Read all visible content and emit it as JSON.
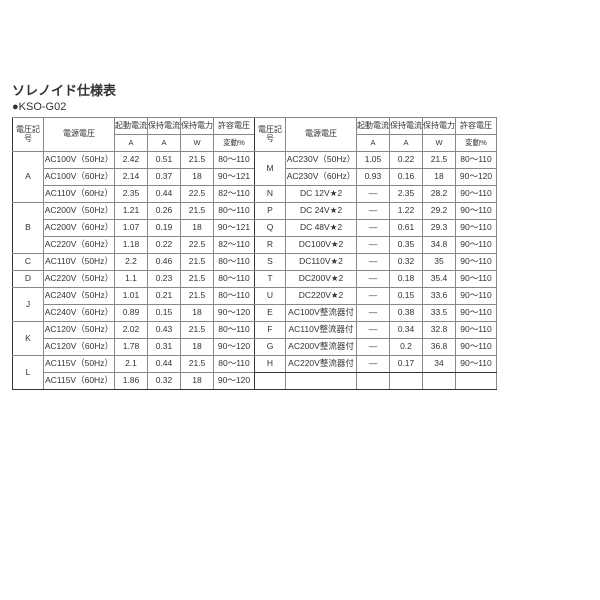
{
  "title": "ソレノイド仕様表",
  "subtitle": "●KSO-G02",
  "headers": {
    "code": "電圧記号",
    "voltage": "電源電圧",
    "start_current": "起動電流",
    "hold_current": "保持電流",
    "hold_power": "保持電力",
    "volt_variation": "許容電圧",
    "unit_A": "A",
    "unit_W": "W",
    "unit_pct": "変動%"
  },
  "left_groups": [
    {
      "code": "A",
      "rows": [
        {
          "v": "AC100V（50Hz）",
          "a": "2.42",
          "b": "0.51",
          "c": "21.5",
          "d": "80～110"
        },
        {
          "v": "AC100V（60Hz）",
          "a": "2.14",
          "b": "0.37",
          "c": "18",
          "d": "90～121"
        },
        {
          "v": "AC110V（60Hz）",
          "a": "2.35",
          "b": "0.44",
          "c": "22.5",
          "d": "82～110"
        }
      ]
    },
    {
      "code": "B",
      "rows": [
        {
          "v": "AC200V（50Hz）",
          "a": "1.21",
          "b": "0.26",
          "c": "21.5",
          "d": "80～110"
        },
        {
          "v": "AC200V（60Hz）",
          "a": "1.07",
          "b": "0.19",
          "c": "18",
          "d": "90～121"
        },
        {
          "v": "AC220V（60Hz）",
          "a": "1.18",
          "b": "0.22",
          "c": "22.5",
          "d": "82～110"
        }
      ]
    },
    {
      "code": "C",
      "rows": [
        {
          "v": "AC110V（50Hz）",
          "a": "2.2",
          "b": "0.46",
          "c": "21.5",
          "d": "80～110"
        }
      ]
    },
    {
      "code": "D",
      "rows": [
        {
          "v": "AC220V（50Hz）",
          "a": "1.1",
          "b": "0.23",
          "c": "21.5",
          "d": "80～110"
        }
      ]
    },
    {
      "code": "J",
      "rows": [
        {
          "v": "AC240V（50Hz）",
          "a": "1.01",
          "b": "0.21",
          "c": "21.5",
          "d": "80～110"
        },
        {
          "v": "AC240V（60Hz）",
          "a": "0.89",
          "b": "0.15",
          "c": "18",
          "d": "90～120"
        }
      ]
    },
    {
      "code": "K",
      "rows": [
        {
          "v": "AC120V（50Hz）",
          "a": "2.02",
          "b": "0.43",
          "c": "21.5",
          "d": "80～110"
        },
        {
          "v": "AC120V（60Hz）",
          "a": "1.78",
          "b": "0.31",
          "c": "18",
          "d": "90～120"
        }
      ]
    },
    {
      "code": "L",
      "rows": [
        {
          "v": "AC115V（50Hz）",
          "a": "2.1",
          "b": "0.44",
          "c": "21.5",
          "d": "80～110"
        },
        {
          "v": "AC115V（60Hz）",
          "a": "1.86",
          "b": "0.32",
          "c": "18",
          "d": "90～120"
        }
      ]
    }
  ],
  "right_groups": [
    {
      "code": "M",
      "rows": [
        {
          "v": "AC230V（50Hz）",
          "a": "1.05",
          "b": "0.22",
          "c": "21.5",
          "d": "80～110"
        },
        {
          "v": "AC230V（60Hz）",
          "a": "0.93",
          "b": "0.16",
          "c": "18",
          "d": "90～120"
        }
      ]
    },
    {
      "code": "N",
      "rows": [
        {
          "v": "DC 12V★2",
          "a": "―",
          "b": "2.35",
          "c": "28.2",
          "d": "90～110"
        }
      ]
    },
    {
      "code": "P",
      "rows": [
        {
          "v": "DC 24V★2",
          "a": "―",
          "b": "1.22",
          "c": "29.2",
          "d": "90～110"
        }
      ]
    },
    {
      "code": "Q",
      "rows": [
        {
          "v": "DC 48V★2",
          "a": "―",
          "b": "0.61",
          "c": "29.3",
          "d": "90～110"
        }
      ]
    },
    {
      "code": "R",
      "rows": [
        {
          "v": "DC100V★2",
          "a": "―",
          "b": "0.35",
          "c": "34.8",
          "d": "90～110"
        }
      ]
    },
    {
      "code": "S",
      "rows": [
        {
          "v": "DC110V★2",
          "a": "―",
          "b": "0.32",
          "c": "35",
          "d": "90～110"
        }
      ]
    },
    {
      "code": "T",
      "rows": [
        {
          "v": "DC200V★2",
          "a": "―",
          "b": "0.18",
          "c": "35.4",
          "d": "90～110"
        }
      ]
    },
    {
      "code": "U",
      "rows": [
        {
          "v": "DC220V★2",
          "a": "―",
          "b": "0.15",
          "c": "33.6",
          "d": "90～110"
        }
      ]
    },
    {
      "code": "E",
      "rows": [
        {
          "v": "AC100V整流器付",
          "a": "―",
          "b": "0.38",
          "c": "33.5",
          "d": "90～110"
        }
      ]
    },
    {
      "code": "F",
      "rows": [
        {
          "v": "AC110V整流器付",
          "a": "―",
          "b": "0.34",
          "c": "32.8",
          "d": "90～110"
        }
      ]
    },
    {
      "code": "G",
      "rows": [
        {
          "v": "AC200V整流器付",
          "a": "―",
          "b": "0.2",
          "c": "36.8",
          "d": "90～110"
        }
      ]
    },
    {
      "code": "H",
      "rows": [
        {
          "v": "AC220V整流器付",
          "a": "―",
          "b": "0.17",
          "c": "34",
          "d": "90～110"
        }
      ]
    }
  ]
}
